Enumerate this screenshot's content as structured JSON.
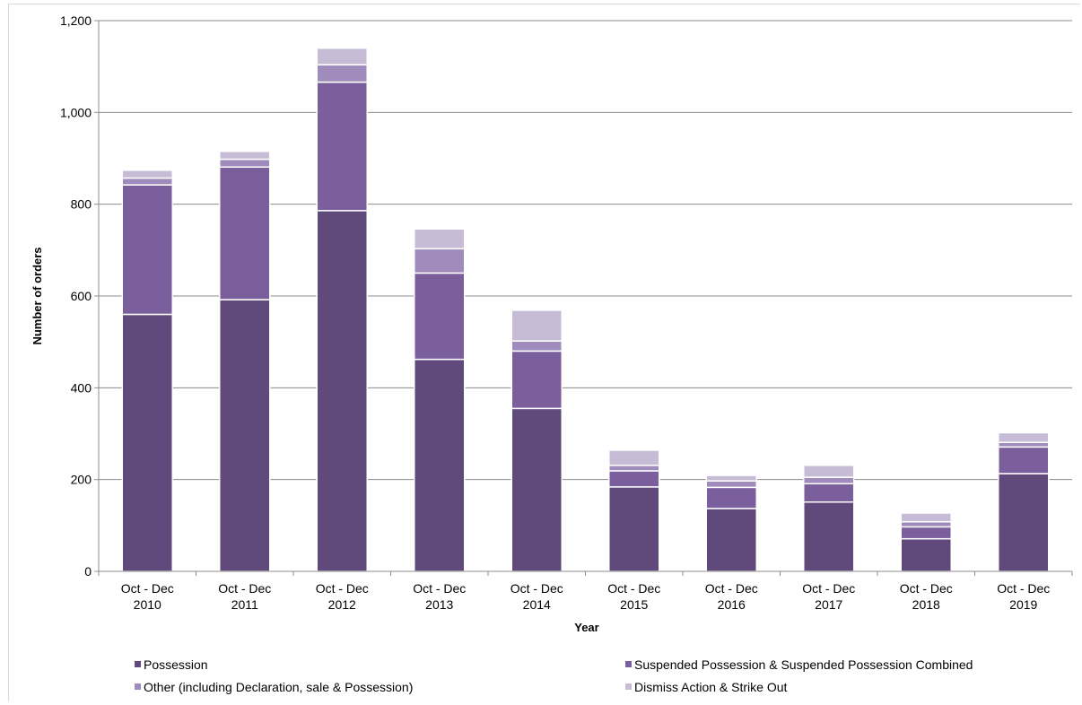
{
  "chart_data": {
    "type": "bar",
    "stacked": true,
    "title": "",
    "xlabel": "Year",
    "ylabel": "Number of orders",
    "ylim": [
      0,
      1200
    ],
    "yticks": [
      0,
      200,
      400,
      600,
      800,
      1000,
      1200
    ],
    "ytick_labels": [
      "0",
      "200",
      "400",
      "600",
      "800",
      "1,000",
      "1,200"
    ],
    "grid": true,
    "legend_position": "bottom",
    "categories": [
      [
        "Oct - Dec",
        "2010"
      ],
      [
        "Oct - Dec",
        "2011"
      ],
      [
        "Oct - Dec",
        "2012"
      ],
      [
        "Oct - Dec",
        "2013"
      ],
      [
        "Oct - Dec",
        "2014"
      ],
      [
        "Oct - Dec",
        "2015"
      ],
      [
        "Oct - Dec",
        "2016"
      ],
      [
        "Oct - Dec",
        "2017"
      ],
      [
        "Oct - Dec",
        "2018"
      ],
      [
        "Oct - Dec",
        "2019"
      ]
    ],
    "series": [
      {
        "name": "Possession",
        "color": "#604a7b",
        "values": [
          560,
          592,
          786,
          462,
          355,
          184,
          137,
          151,
          71,
          213
        ]
      },
      {
        "name": "Suspended Possession & Suspended Possession Combined",
        "color": "#7b5e9c",
        "values": [
          282,
          289,
          280,
          188,
          125,
          35,
          46,
          40,
          26,
          58
        ]
      },
      {
        "name": "Other (including Declaration, sale & Possession)",
        "color": "#a08cbc",
        "values": [
          15,
          17,
          38,
          53,
          22,
          12,
          14,
          14,
          11,
          10
        ]
      },
      {
        "name": "Dismiss Action & Strike Out",
        "color": "#c7bcd6",
        "values": [
          17,
          17,
          36,
          43,
          67,
          33,
          12,
          26,
          19,
          21
        ]
      }
    ]
  }
}
